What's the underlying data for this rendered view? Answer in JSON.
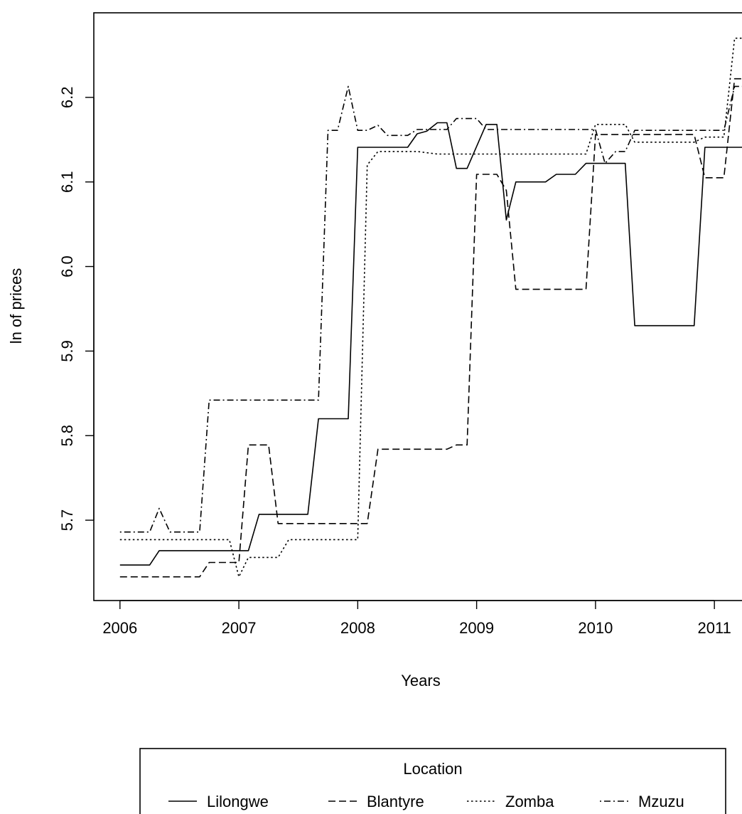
{
  "chart_data": {
    "type": "line",
    "title": "",
    "xlabel": "Years",
    "ylabel": "ln of prices",
    "xlim": [
      2005.78,
      2011.28
    ],
    "ylim": [
      5.605,
      6.3
    ],
    "x_ticks": [
      2006,
      2007,
      2008,
      2009,
      2010,
      2011
    ],
    "y_ticks": [
      5.7,
      5.8,
      5.9,
      6.0,
      6.1,
      6.2
    ],
    "grid": false,
    "legend": {
      "title": "Location",
      "placement": "bottom",
      "entries": [
        "Lilongwe",
        "Blantyre",
        "Zomba",
        "Mzuzu"
      ]
    },
    "series": [
      {
        "name": "Lilongwe",
        "dash": "solid",
        "points": [
          [
            2006.0,
            5.647
          ],
          [
            2006.25,
            5.647
          ],
          [
            2006.33,
            5.664
          ],
          [
            2007.08,
            5.664
          ],
          [
            2007.17,
            5.707
          ],
          [
            2007.58,
            5.707
          ],
          [
            2007.67,
            5.82
          ],
          [
            2007.92,
            5.82
          ],
          [
            2008.0,
            6.141
          ],
          [
            2008.42,
            6.141
          ],
          [
            2008.5,
            6.157
          ],
          [
            2008.58,
            6.16
          ],
          [
            2008.67,
            6.17
          ],
          [
            2008.75,
            6.17
          ],
          [
            2008.83,
            6.116
          ],
          [
            2008.92,
            6.116
          ],
          [
            2009.08,
            6.168
          ],
          [
            2009.17,
            6.168
          ],
          [
            2009.25,
            6.055
          ],
          [
            2009.33,
            6.1
          ],
          [
            2009.58,
            6.1
          ],
          [
            2009.67,
            6.109
          ],
          [
            2009.83,
            6.109
          ],
          [
            2009.92,
            6.122
          ],
          [
            2010.25,
            6.122
          ],
          [
            2010.33,
            5.93
          ],
          [
            2010.83,
            5.93
          ],
          [
            2010.92,
            6.141
          ],
          [
            2011.25,
            6.141
          ]
        ]
      },
      {
        "name": "Blantyre",
        "dash": "dashed",
        "points": [
          [
            2006.0,
            5.633
          ],
          [
            2006.67,
            5.633
          ],
          [
            2006.75,
            5.65
          ],
          [
            2007.0,
            5.65
          ],
          [
            2007.08,
            5.789
          ],
          [
            2007.25,
            5.789
          ],
          [
            2007.33,
            5.696
          ],
          [
            2008.0,
            5.696
          ],
          [
            2008.08,
            5.696
          ],
          [
            2008.17,
            5.784
          ],
          [
            2008.75,
            5.784
          ],
          [
            2008.83,
            5.789
          ],
          [
            2008.92,
            5.789
          ],
          [
            2009.0,
            6.109
          ],
          [
            2009.17,
            6.109
          ],
          [
            2009.25,
            6.09
          ],
          [
            2009.33,
            5.973
          ],
          [
            2009.92,
            5.973
          ],
          [
            2010.0,
            6.156
          ],
          [
            2010.83,
            6.156
          ],
          [
            2010.92,
            6.105
          ],
          [
            2011.08,
            6.105
          ],
          [
            2011.17,
            6.222
          ],
          [
            2011.25,
            6.222
          ]
        ]
      },
      {
        "name": "Zomba",
        "dash": "dotted",
        "points": [
          [
            2006.0,
            5.677
          ],
          [
            2006.92,
            5.677
          ],
          [
            2007.0,
            5.633
          ],
          [
            2007.08,
            5.656
          ],
          [
            2007.33,
            5.656
          ],
          [
            2007.42,
            5.677
          ],
          [
            2008.0,
            5.677
          ],
          [
            2008.08,
            6.12
          ],
          [
            2008.17,
            6.136
          ],
          [
            2008.5,
            6.136
          ],
          [
            2008.67,
            6.133
          ],
          [
            2009.92,
            6.133
          ],
          [
            2010.0,
            6.168
          ],
          [
            2010.25,
            6.168
          ],
          [
            2010.33,
            6.147
          ],
          [
            2010.83,
            6.147
          ],
          [
            2010.92,
            6.153
          ],
          [
            2011.08,
            6.153
          ],
          [
            2011.17,
            6.27
          ],
          [
            2011.25,
            6.27
          ]
        ]
      },
      {
        "name": "Mzuzu",
        "dash": "dotdash",
        "points": [
          [
            2006.0,
            5.686
          ],
          [
            2006.25,
            5.686
          ],
          [
            2006.33,
            5.714
          ],
          [
            2006.42,
            5.686
          ],
          [
            2006.67,
            5.686
          ],
          [
            2006.75,
            5.842
          ],
          [
            2007.67,
            5.842
          ],
          [
            2007.75,
            6.161
          ],
          [
            2007.83,
            6.161
          ],
          [
            2007.92,
            6.213
          ],
          [
            2008.0,
            6.161
          ],
          [
            2008.08,
            6.161
          ],
          [
            2008.17,
            6.167
          ],
          [
            2008.25,
            6.155
          ],
          [
            2008.42,
            6.155
          ],
          [
            2008.5,
            6.162
          ],
          [
            2008.75,
            6.162
          ],
          [
            2008.83,
            6.175
          ],
          [
            2009.0,
            6.175
          ],
          [
            2009.08,
            6.162
          ],
          [
            2010.0,
            6.162
          ],
          [
            2010.08,
            6.122
          ],
          [
            2010.17,
            6.136
          ],
          [
            2010.25,
            6.136
          ],
          [
            2010.33,
            6.161
          ],
          [
            2011.08,
            6.161
          ],
          [
            2011.17,
            6.213
          ],
          [
            2011.25,
            6.213
          ]
        ]
      }
    ]
  }
}
